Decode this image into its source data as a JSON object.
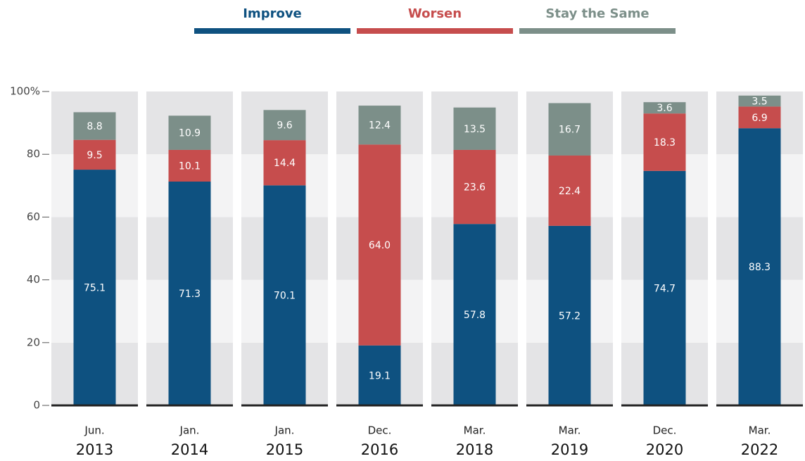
{
  "chart_data": {
    "type": "stacked-bar",
    "categories": [
      [
        "Jun.",
        "2013"
      ],
      [
        "Jan.",
        "2014"
      ],
      [
        "Jan.",
        "2015"
      ],
      [
        "Dec.",
        "2016"
      ],
      [
        "Mar.",
        "2018"
      ],
      [
        "Mar.",
        "2019"
      ],
      [
        "Dec.",
        "2020"
      ],
      [
        "Mar.",
        "2022"
      ]
    ],
    "series": [
      {
        "name": "Improve",
        "color": "#0e5180",
        "values": [
          75.1,
          71.3,
          70.1,
          19.1,
          57.8,
          57.2,
          74.7,
          88.3
        ],
        "value_labels": [
          "75.1",
          "71.3",
          "70.1",
          "19.1",
          "57.8",
          "57.2",
          "74.7",
          "88.3"
        ]
      },
      {
        "name": "Worsen",
        "color": "#c64d4d",
        "values": [
          9.5,
          10.1,
          14.4,
          64.0,
          23.6,
          22.4,
          18.3,
          6.9
        ],
        "value_labels": [
          "9.5",
          "10.1",
          "14.4",
          "64.0",
          "23.6",
          "22.4",
          "18.3",
          "6.9"
        ]
      },
      {
        "name": "Stay the Same",
        "color": "#7c8f89",
        "values": [
          8.8,
          10.9,
          9.6,
          12.4,
          13.5,
          16.7,
          3.6,
          3.5
        ],
        "value_labels": [
          "8.8",
          "10.9",
          "9.6",
          "12.4",
          "13.5",
          "16.7",
          "3.6",
          "3.5"
        ]
      }
    ],
    "ylim": [
      0,
      100
    ],
    "yticks": [
      0,
      20,
      40,
      60,
      80,
      {
        "value": 100,
        "label": "100%"
      }
    ]
  }
}
